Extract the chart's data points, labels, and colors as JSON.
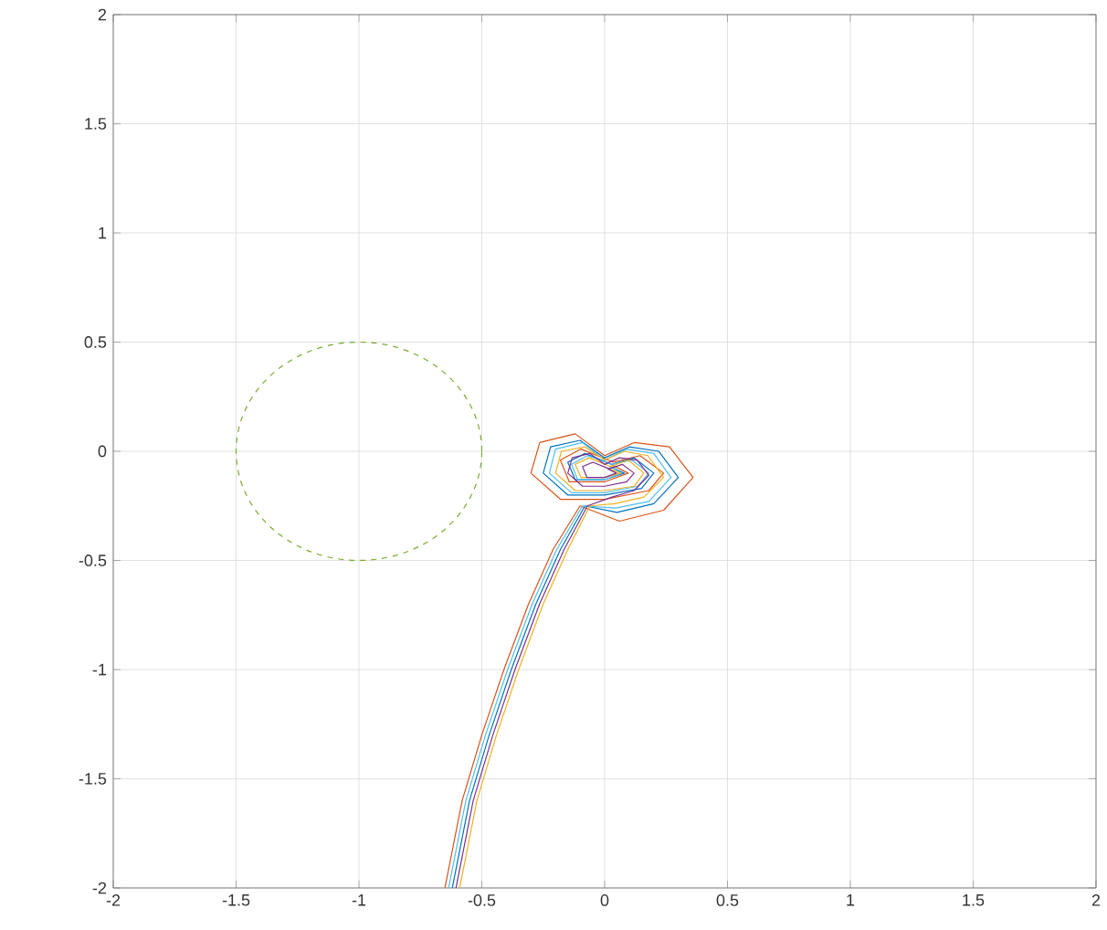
{
  "chart_data": {
    "type": "line",
    "xlim": [
      -2,
      2
    ],
    "ylim": [
      -2,
      2
    ],
    "xticks": [
      -2,
      -1.5,
      -1,
      -0.5,
      0,
      0.5,
      1,
      1.5,
      2
    ],
    "yticks": [
      -2,
      -1.5,
      -1,
      -0.5,
      0,
      0.5,
      1,
      1.5,
      2
    ],
    "grid": true,
    "line_style": "solid",
    "series": [
      {
        "color": "#d95319",
        "x": [
          -0.65,
          -0.58,
          -0.5,
          -0.41,
          -0.31,
          -0.21,
          -0.1,
          0.06,
          0.24,
          0.36,
          0.264,
          0.12,
          0,
          -0.12,
          -0.264,
          -0.3,
          -0.18,
          0,
          0.18,
          0.24,
          0.144,
          0.036,
          -0.096,
          -0.18,
          -0.144,
          0,
          0.096,
          0.024
        ],
        "values": [
          -2,
          -1.6,
          -1.3,
          -1,
          -0.7,
          -0.45,
          -0.25,
          -0.32,
          -0.27,
          -0.12,
          0.02,
          0.04,
          -0.02,
          0.08,
          0.04,
          -0.1,
          -0.22,
          -0.22,
          -0.18,
          -0.1,
          -0.02,
          -0.05,
          0.01,
          -0.04,
          -0.14,
          -0.14,
          -0.1,
          -0.06
        ]
      },
      {
        "color": "#0072bd",
        "x": [
          -0.62,
          -0.55,
          -0.47,
          -0.38,
          -0.28,
          -0.18,
          -0.08,
          0.05,
          0.2,
          0.3,
          0.22,
          0.1,
          0,
          -0.1,
          -0.22,
          -0.25,
          -0.15,
          0,
          0.15,
          0.2,
          0.12,
          0.03,
          -0.08,
          -0.15,
          -0.12,
          0,
          0.08,
          0.02
        ],
        "values": [
          -2,
          -1.6,
          -1.3,
          -1,
          -0.7,
          -0.45,
          -0.25,
          -0.28,
          -0.24,
          -0.12,
          0,
          0.02,
          -0.03,
          0.05,
          0.02,
          -0.1,
          -0.2,
          -0.2,
          -0.17,
          -0.1,
          -0.03,
          -0.06,
          -0.01,
          -0.05,
          -0.13,
          -0.13,
          -0.1,
          -0.07
        ]
      },
      {
        "color": "#4dbeee",
        "x": [
          -0.635,
          -0.565,
          -0.485,
          -0.395,
          -0.295,
          -0.195,
          -0.09,
          0.045,
          0.18,
          0.27,
          0.2,
          0.09,
          0,
          -0.09,
          -0.2,
          -0.225,
          -0.135,
          0,
          0.135,
          0.18,
          0.11,
          0.03,
          -0.07,
          -0.135,
          -0.11,
          0,
          0.07,
          0.02
        ],
        "values": [
          -2,
          -1.6,
          -1.3,
          -1,
          -0.7,
          -0.45,
          -0.25,
          -0.26,
          -0.23,
          -0.12,
          -0.01,
          0.01,
          -0.04,
          0.04,
          0.01,
          -0.1,
          -0.19,
          -0.19,
          -0.16,
          -0.1,
          -0.04,
          -0.06,
          -0.02,
          -0.06,
          -0.13,
          -0.13,
          -0.1,
          -0.07
        ]
      },
      {
        "color": "#edb120",
        "x": [
          -0.59,
          -0.52,
          -0.44,
          -0.35,
          -0.25,
          -0.15,
          -0.06,
          0.04,
          0.16,
          0.24,
          0.176,
          0.08,
          0,
          -0.08,
          -0.176,
          -0.2,
          -0.12,
          0,
          0.12,
          0.16,
          0.096,
          0.024,
          -0.064,
          -0.12,
          -0.096,
          0,
          0.064,
          0.016
        ],
        "values": [
          -2,
          -1.6,
          -1.3,
          -1,
          -0.7,
          -0.45,
          -0.25,
          -0.24,
          -0.21,
          -0.12,
          -0.02,
          0,
          -0.04,
          0.02,
          0,
          -0.1,
          -0.18,
          -0.18,
          -0.16,
          -0.1,
          -0.04,
          -0.07,
          -0.03,
          -0.06,
          -0.12,
          -0.12,
          -0.1,
          -0.08
        ]
      },
      {
        "color": "#7e2f8e",
        "x": [
          -0.605,
          -0.535,
          -0.455,
          -0.365,
          -0.265,
          -0.165,
          -0.07,
          0.03,
          0.12,
          0.18,
          0.132,
          0.06,
          0,
          -0.06,
          -0.132,
          -0.15,
          -0.09,
          0,
          0.09,
          0.12,
          0.072,
          0.018,
          -0.048,
          -0.09,
          -0.072,
          0,
          0.048,
          0.012
        ],
        "values": [
          -2,
          -1.6,
          -1.3,
          -1,
          -0.7,
          -0.45,
          -0.25,
          -0.21,
          -0.18,
          -0.11,
          -0.04,
          -0.03,
          -0.06,
          -0.01,
          -0.03,
          -0.1,
          -0.16,
          -0.16,
          -0.14,
          -0.1,
          -0.06,
          -0.08,
          -0.05,
          -0.07,
          -0.12,
          -0.12,
          -0.1,
          -0.08
        ]
      }
    ]
  }
}
